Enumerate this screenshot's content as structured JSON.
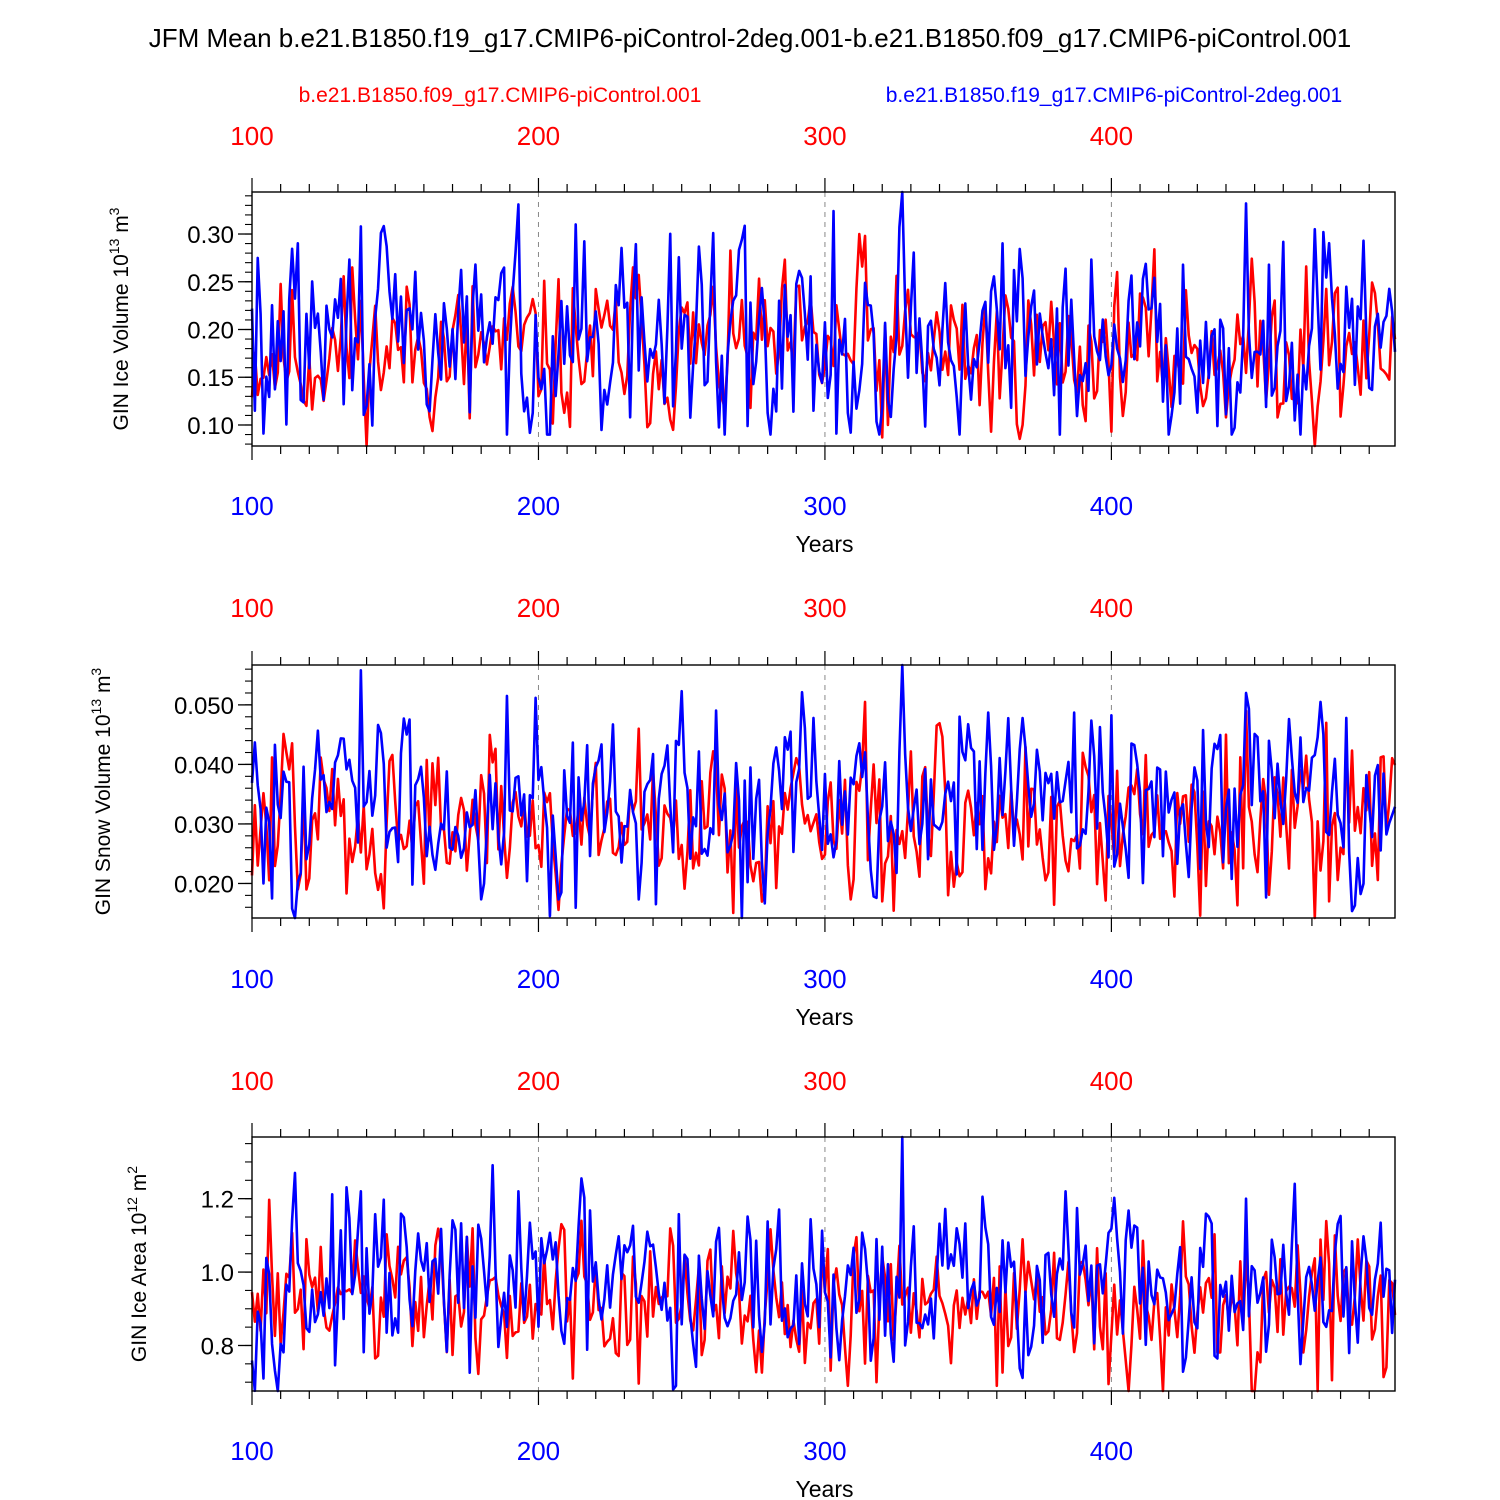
{
  "figure_title": "JFM Mean b.e21.B1850.f19_g17.CMIP6-piControl-2deg.001-b.e21.B1850.f09_g17.CMIP6-piControl.001",
  "legend": {
    "red_label": "b.e21.B1850.f09_g17.CMIP6-piControl.001",
    "blue_label": "b.e21.B1850.f19_g17.CMIP6-piControl-2deg.001"
  },
  "colors": {
    "red": "#ff0000",
    "blue": "#0000ff",
    "axis": "#000000",
    "grid": "#888888"
  },
  "chart_data": [
    {
      "type": "line",
      "title": "",
      "xlabel": "Years",
      "ylabel_main": "GIN Ice Volume 10",
      "ylabel_exp": "13",
      "ylabel_unit": " m",
      "ylabel_unit_exp": "3",
      "xlim": [
        100,
        499
      ],
      "ylim": [
        0.078,
        0.344
      ],
      "x_ticks": [
        100,
        200,
        300,
        400
      ],
      "y_ticks": [
        0.1,
        0.15,
        0.2,
        0.25,
        0.3
      ],
      "y_tick_labels": [
        "0.10",
        "0.15",
        "0.20",
        "0.25",
        "0.30"
      ],
      "y_minor_step": 0.01,
      "series": [
        {
          "name": "b.e21.B1850.f09_g17.CMIP6-piControl.001",
          "color": "#ff0000",
          "seed": 11,
          "mean": 0.177,
          "amp": 0.038,
          "min": 0.078,
          "max": 0.3,
          "peaks": [
            [
              119,
              0.12
            ],
            [
              135,
              0.265
            ],
            [
              176,
              0.107
            ],
            [
              211,
              0.098
            ],
            [
              233,
              0.265
            ],
            [
              312,
              0.3
            ],
            [
              314,
              0.298
            ],
            [
              320,
              0.087
            ],
            [
              358,
              0.093
            ],
            [
              400,
              0.093
            ],
            [
              468,
              0.266
            ],
            [
              471,
              0.078
            ]
          ]
        },
        {
          "name": "b.e21.B1850.f19_g17.CMIP6-piControl-2deg.001",
          "color": "#0000ff",
          "seed": 29,
          "mean": 0.19,
          "amp": 0.048,
          "min": 0.09,
          "max": 0.344,
          "peaks": [
            [
              101,
              0.115
            ],
            [
              102,
              0.275
            ],
            [
              104,
              0.091
            ],
            [
              138,
              0.308
            ],
            [
              193,
              0.331
            ],
            [
              213,
              0.31
            ],
            [
              261,
              0.301
            ],
            [
              273,
              0.099
            ],
            [
              303,
              0.324
            ],
            [
              309,
              0.092
            ],
            [
              327,
              0.344
            ],
            [
              447,
              0.332
            ],
            [
              474,
              0.302
            ]
          ]
        }
      ]
    },
    {
      "type": "line",
      "title": "",
      "xlabel": "Years",
      "ylabel_main": "GIN Snow Volume 10",
      "ylabel_exp": "13",
      "ylabel_unit": " m",
      "ylabel_unit_exp": "3",
      "xlim": [
        100,
        499
      ],
      "ylim": [
        0.0142,
        0.0567
      ],
      "x_ticks": [
        100,
        200,
        300,
        400
      ],
      "y_ticks": [
        0.02,
        0.03,
        0.04,
        0.05
      ],
      "y_tick_labels": [
        "0.020",
        "0.030",
        "0.040",
        "0.050"
      ],
      "y_minor_step": 0.002,
      "series": [
        {
          "name": "b.e21.B1850.f09_g17.CMIP6-piControl.001",
          "color": "#ff0000",
          "seed": 47,
          "mean": 0.0305,
          "amp": 0.0065,
          "min": 0.0142,
          "max": 0.0505,
          "peaks": [
            [
              102,
              0.023
            ],
            [
              112,
              0.042
            ],
            [
              119,
              0.019
            ],
            [
              235,
              0.046
            ],
            [
              314,
              0.0505
            ],
            [
              320,
              0.017
            ],
            [
              440,
              0.045
            ],
            [
              447,
              0.049
            ],
            [
              471,
              0.0142
            ],
            [
              475,
              0.047
            ]
          ]
        },
        {
          "name": "b.e21.B1850.f19_g17.CMIP6-piControl-2deg.001",
          "color": "#0000ff",
          "seed": 83,
          "mean": 0.0335,
          "amp": 0.0075,
          "min": 0.0142,
          "max": 0.0567,
          "peaks": [
            [
              104,
              0.02
            ],
            [
              138,
              0.0558
            ],
            [
              189,
              0.0515
            ],
            [
              193,
              0.038
            ],
            [
              199,
              0.0512
            ],
            [
              271,
              0.0142
            ],
            [
              327,
              0.0567
            ],
            [
              447,
              0.052
            ],
            [
              474,
              0.045
            ]
          ]
        }
      ]
    },
    {
      "type": "line",
      "title": "",
      "xlabel": "Years",
      "ylabel_main": "GIN Ice Area 10",
      "ylabel_exp": "12",
      "ylabel_unit": " m",
      "ylabel_unit_exp": "2",
      "xlim": [
        100,
        499
      ],
      "ylim": [
        0.676,
        1.368
      ],
      "x_ticks": [
        100,
        200,
        300,
        400
      ],
      "y_ticks": [
        0.8,
        1.0,
        1.2
      ],
      "y_tick_labels": [
        "0.8",
        "1.0",
        "1.2"
      ],
      "y_minor_step": 0.05,
      "series": [
        {
          "name": "b.e21.B1850.f09_g17.CMIP6-piControl.001",
          "color": "#ff0000",
          "seed": 61,
          "mean": 0.915,
          "amp": 0.095,
          "min": 0.676,
          "max": 1.2,
          "peaks": [
            [
              106,
              1.197
            ],
            [
              118,
              0.79
            ],
            [
              212,
              0.71
            ],
            [
              318,
              0.7
            ],
            [
              360,
              0.69
            ],
            [
              399,
              0.695
            ],
            [
              472,
              0.676
            ],
            [
              478,
              1.1
            ]
          ]
        },
        {
          "name": "b.e21.B1850.f19_g17.CMIP6-piControl-2deg.001",
          "color": "#0000ff",
          "seed": 97,
          "mean": 0.96,
          "amp": 0.11,
          "min": 0.676,
          "max": 1.368,
          "peaks": [
            [
              104,
              0.71
            ],
            [
              115,
              1.27
            ],
            [
              138,
              1.22
            ],
            [
              193,
              1.22
            ],
            [
              247,
              0.68
            ],
            [
              248,
              0.69
            ],
            [
              327,
              1.368
            ],
            [
              384,
              1.22
            ],
            [
              447,
              1.2
            ]
          ]
        }
      ]
    }
  ]
}
